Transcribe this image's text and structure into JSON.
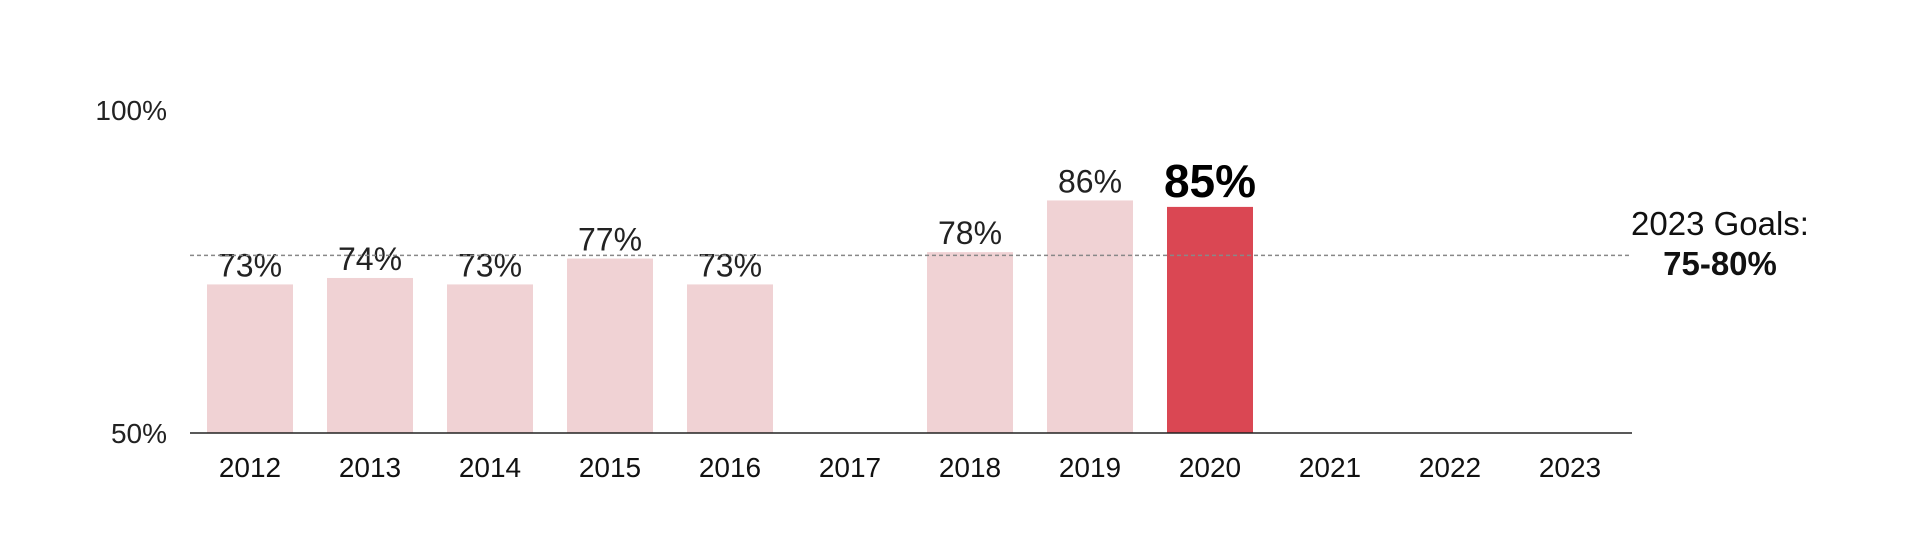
{
  "chart_data": {
    "type": "bar",
    "categories": [
      "2012",
      "2013",
      "2014",
      "2015",
      "2016",
      "2017",
      "2018",
      "2019",
      "2020",
      "2021",
      "2022",
      "2023"
    ],
    "values": [
      73,
      74,
      73,
      77,
      73,
      null,
      78,
      86,
      85,
      null,
      null,
      null
    ],
    "data_labels": [
      "73%",
      "74%",
      "73%",
      "77%",
      "73%",
      "",
      "78%",
      "86%",
      "85%",
      "",
      "",
      ""
    ],
    "highlight_category": "2020",
    "ylim": [
      50,
      100
    ],
    "yticks": [
      50,
      100
    ],
    "ytick_labels": [
      "50%",
      "100%"
    ],
    "reference_line": 77.5,
    "goal": {
      "title": "2023 Goals:",
      "value": "75-80%"
    },
    "colors": {
      "bar": "#f0d2d4",
      "highlight": "#da4753",
      "axis": "#222222",
      "reference_line": "#888888"
    },
    "title": "",
    "xlabel": "",
    "ylabel": ""
  }
}
